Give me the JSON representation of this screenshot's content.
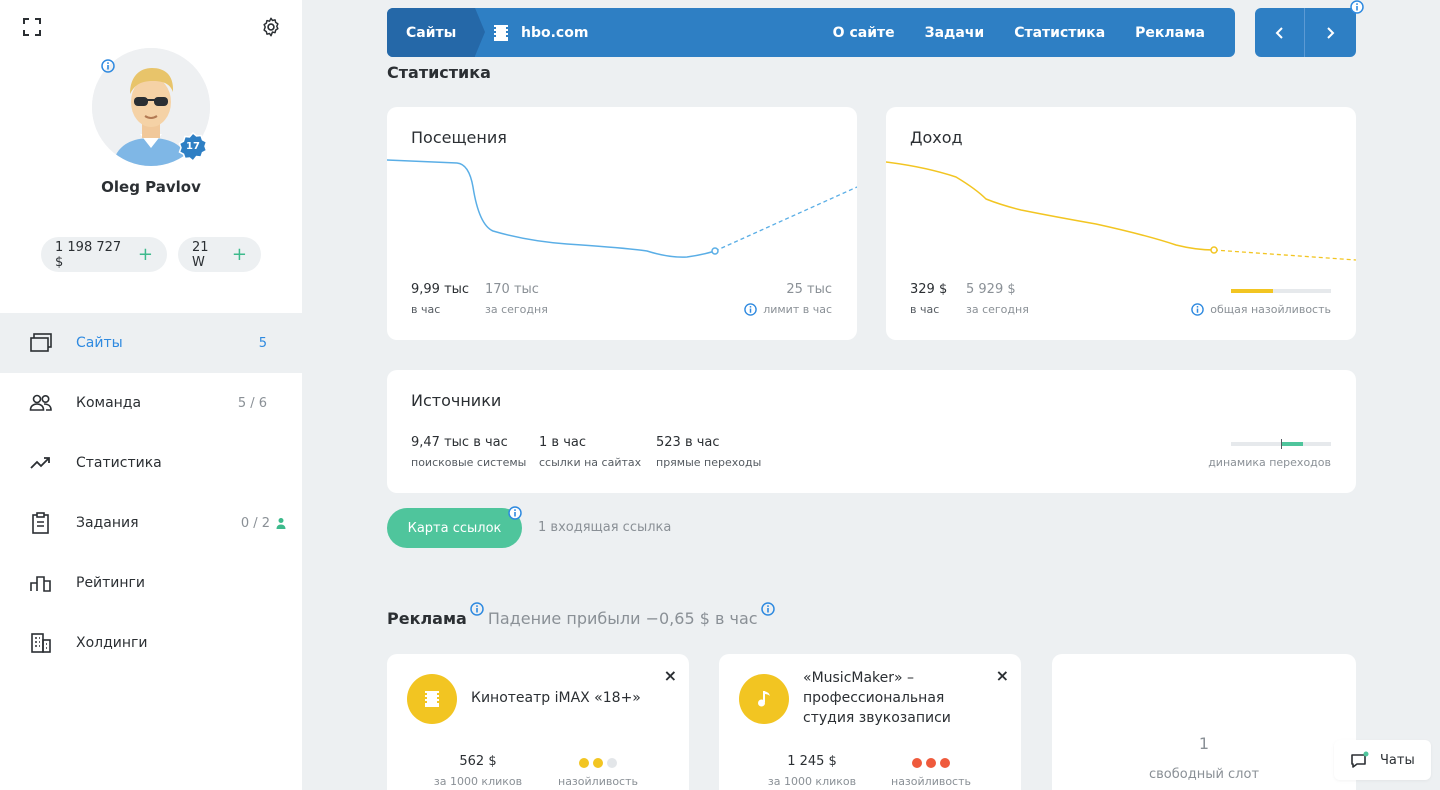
{
  "user": {
    "name": "Oleg Pavlov",
    "level": "17",
    "balance": "1 198 727 $",
    "w": "21 W",
    "plus": "+"
  },
  "nav": [
    {
      "label": "Сайты",
      "count": "5"
    },
    {
      "label": "Команда",
      "count": "5 / 6"
    },
    {
      "label": "Статистика",
      "count": ""
    },
    {
      "label": "Задания",
      "count": "0 / 2"
    },
    {
      "label": "Рейтинги",
      "count": ""
    },
    {
      "label": "Холдинги",
      "count": ""
    }
  ],
  "topbar": {
    "crumb": "Сайты",
    "site": "hbo.com",
    "links": [
      "О сайте",
      "Задачи",
      "Статистика",
      "Реклама"
    ]
  },
  "stats": {
    "title": "Статистика",
    "visits": {
      "title": "Посещения",
      "v1": "9,99 тыс",
      "c1": "в час",
      "v2": "170 тыс",
      "c2": "за сегодня",
      "v3": "25 тыс",
      "c3": "лимит в час"
    },
    "income": {
      "title": "Доход",
      "v1": "329 $",
      "c1": "в час",
      "v2": "5 929 $",
      "c2": "за сегодня",
      "c3": "общая назойливость",
      "annoyance_fraction": 0.42,
      "color": "#f2c522"
    },
    "sources": {
      "title": "Источники",
      "v1": "9,47 тыс в час",
      "c1": "поисковые системы",
      "v2": "1 в час",
      "c2": "ссылки на сайтах",
      "v3": "523 в час",
      "c3": "прямые переходы",
      "c4": "динамика переходов",
      "dynamics_color": "#4fc59c"
    }
  },
  "links": {
    "button": "Карта ссылок",
    "incoming": "1 входящая ссылка"
  },
  "ads": {
    "title": "Реклама",
    "subtitle": "Падение прибыли −0,65 $ в час",
    "cards": [
      {
        "title_lines": [
          "Кинотеатр iMAX «18+»"
        ],
        "price": "562 $",
        "price_cap": "за 1000 кликов",
        "annoy_cap": "назойливость",
        "annoyance": 2,
        "annoyance_max": 3
      },
      {
        "title_lines": [
          "«MusicMaker» –",
          "профессиональная",
          "студия звукозаписи"
        ],
        "price": "1 245 $",
        "price_cap": "за 1000 кликов",
        "annoy_cap": "назойливость",
        "annoyance": 3,
        "annoyance_max": 3
      }
    ],
    "slot_count": "1",
    "slot_label": "свободный слот",
    "close": "×"
  },
  "chat": {
    "label": "Чаты"
  },
  "colors": {
    "accent": "#2e7fc4",
    "green": "#4fc59c",
    "yellow": "#f2c522",
    "red": "#ef5a3c",
    "visits_line": "#5aaee6"
  }
}
